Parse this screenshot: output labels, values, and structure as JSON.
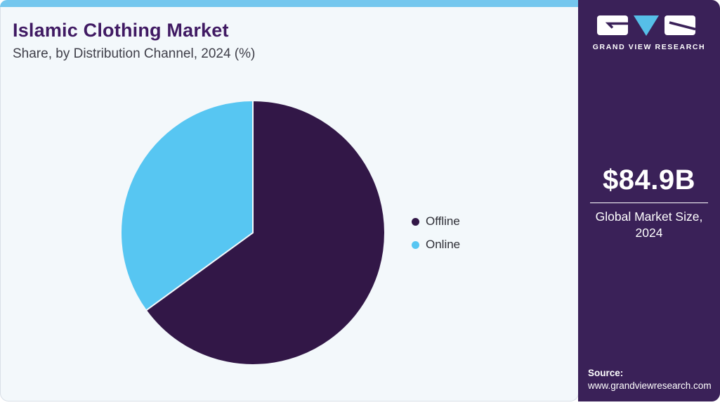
{
  "header": {
    "title": "Islamic Clothing Market",
    "subtitle": "Share, by Distribution Channel, 2024 (%)"
  },
  "chart_data": {
    "type": "pie",
    "title": "Islamic Clothing Market Share, by Distribution Channel, 2024 (%)",
    "labels": [
      "Offline",
      "Online"
    ],
    "values": [
      65,
      35
    ],
    "unit": "%",
    "colors": [
      "#321747",
      "#57c6f2"
    ],
    "start_angle_deg": 0,
    "direction": "clockwise",
    "legend_position": "right",
    "slice_separator_color": "#f3f8fb"
  },
  "sidebar": {
    "logo": {
      "icon": "gvr-logo",
      "brand": "GRAND VIEW RESEARCH"
    },
    "market_size_value": "$84.9B",
    "market_size_label": "Global Market Size, 2024",
    "source_label": "Source:",
    "source_url": "www.grandviewresearch.com",
    "background": "#3a2158",
    "logo_triangle_blue": "#56bfe8"
  },
  "theme": {
    "top_bar_blue": "#74c7ee",
    "card_background": "#f3f8fb",
    "card_border": "#d9dfe7",
    "title_color": "#401a63",
    "subtitle_color": "#3f3f49",
    "legend_text_color": "#2e2e36"
  }
}
